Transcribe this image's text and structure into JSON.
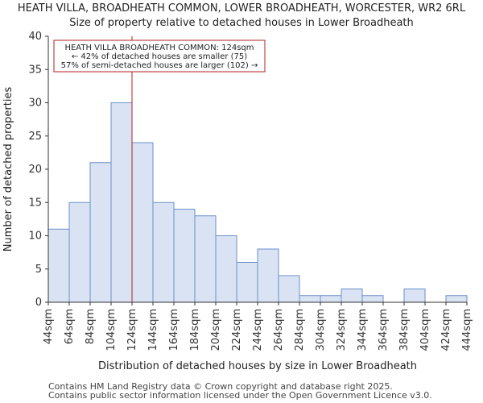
{
  "title_line1": "HEATH VILLA, BROADHEATH COMMON, LOWER BROADHEATH, WORCESTER, WR2 6RL",
  "title_line2": "Size of property relative to detached houses in Lower Broadheath",
  "footer_line1": "Contains HM Land Registry data © Crown copyright and database right 2025.",
  "footer_line2": "Contains public sector information licensed under the Open Government Licence v3.0.",
  "colors": {
    "bar_fill": "#dae3f3",
    "bar_stroke": "#6a8fc8",
    "marker": "#b22222"
  },
  "chart_data": {
    "type": "bar",
    "xlabel": "Distribution of detached houses by size in Lower Broadheath",
    "ylabel": "Number of detached properties",
    "ylim": [
      0,
      40
    ],
    "yticks": [
      0,
      5,
      10,
      15,
      20,
      25,
      30,
      35,
      40
    ],
    "bin_edges": [
      44,
      64,
      84,
      104,
      124,
      144,
      164,
      184,
      204,
      224,
      244,
      264,
      284,
      304,
      324,
      344,
      364,
      384,
      404,
      424,
      444
    ],
    "tick_labels": [
      "44sqm",
      "64sqm",
      "84sqm",
      "104sqm",
      "124sqm",
      "144sqm",
      "164sqm",
      "184sqm",
      "204sqm",
      "224sqm",
      "244sqm",
      "264sqm",
      "284sqm",
      "304sqm",
      "324sqm",
      "344sqm",
      "364sqm",
      "384sqm",
      "404sqm",
      "424sqm",
      "444sqm"
    ],
    "values": [
      11,
      15,
      21,
      30,
      24,
      15,
      14,
      13,
      10,
      6,
      8,
      4,
      1,
      1,
      2,
      1,
      0,
      2,
      0,
      1
    ],
    "marker_value": 124,
    "annotation": [
      "HEATH VILLA BROADHEATH COMMON: 124sqm",
      "← 42% of detached houses are smaller (75)",
      "57% of semi-detached houses are larger (102) →"
    ]
  }
}
